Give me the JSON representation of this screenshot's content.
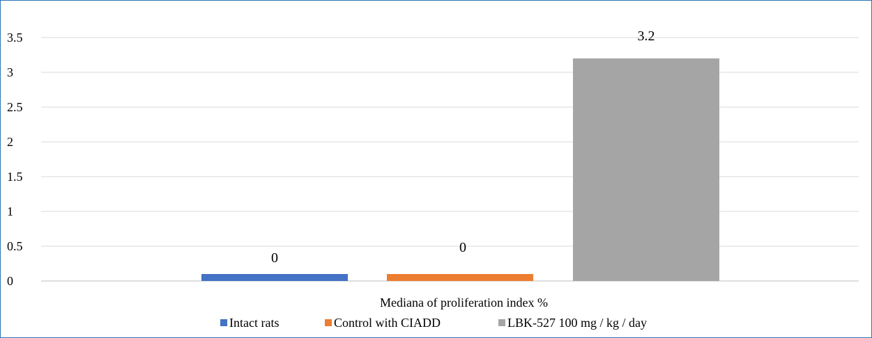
{
  "chart_data": {
    "type": "bar",
    "categories": [
      "Mediana of proliferation index %"
    ],
    "series": [
      {
        "name": "Intact rats",
        "values": [
          0
        ],
        "display_label": "0",
        "color": "#4472c4"
      },
      {
        "name": "Control with CIADD",
        "values": [
          0
        ],
        "display_label": "0",
        "color": "#ed7d31"
      },
      {
        "name": "LBK-527 100 mg / kg / day",
        "values": [
          3.2
        ],
        "display_label": "3.2",
        "color": "#a5a5a5"
      }
    ],
    "ylim": [
      0,
      3.5
    ],
    "yticks": [
      "0",
      "0.5",
      "1",
      "1.5",
      "2",
      "2.5",
      "3",
      "3.5"
    ],
    "title": "",
    "xlabel": "",
    "ylabel": "",
    "grid": true,
    "legend_position": "bottom",
    "border_color": "#2e75b6",
    "grid_color": "#d9d9d9"
  }
}
